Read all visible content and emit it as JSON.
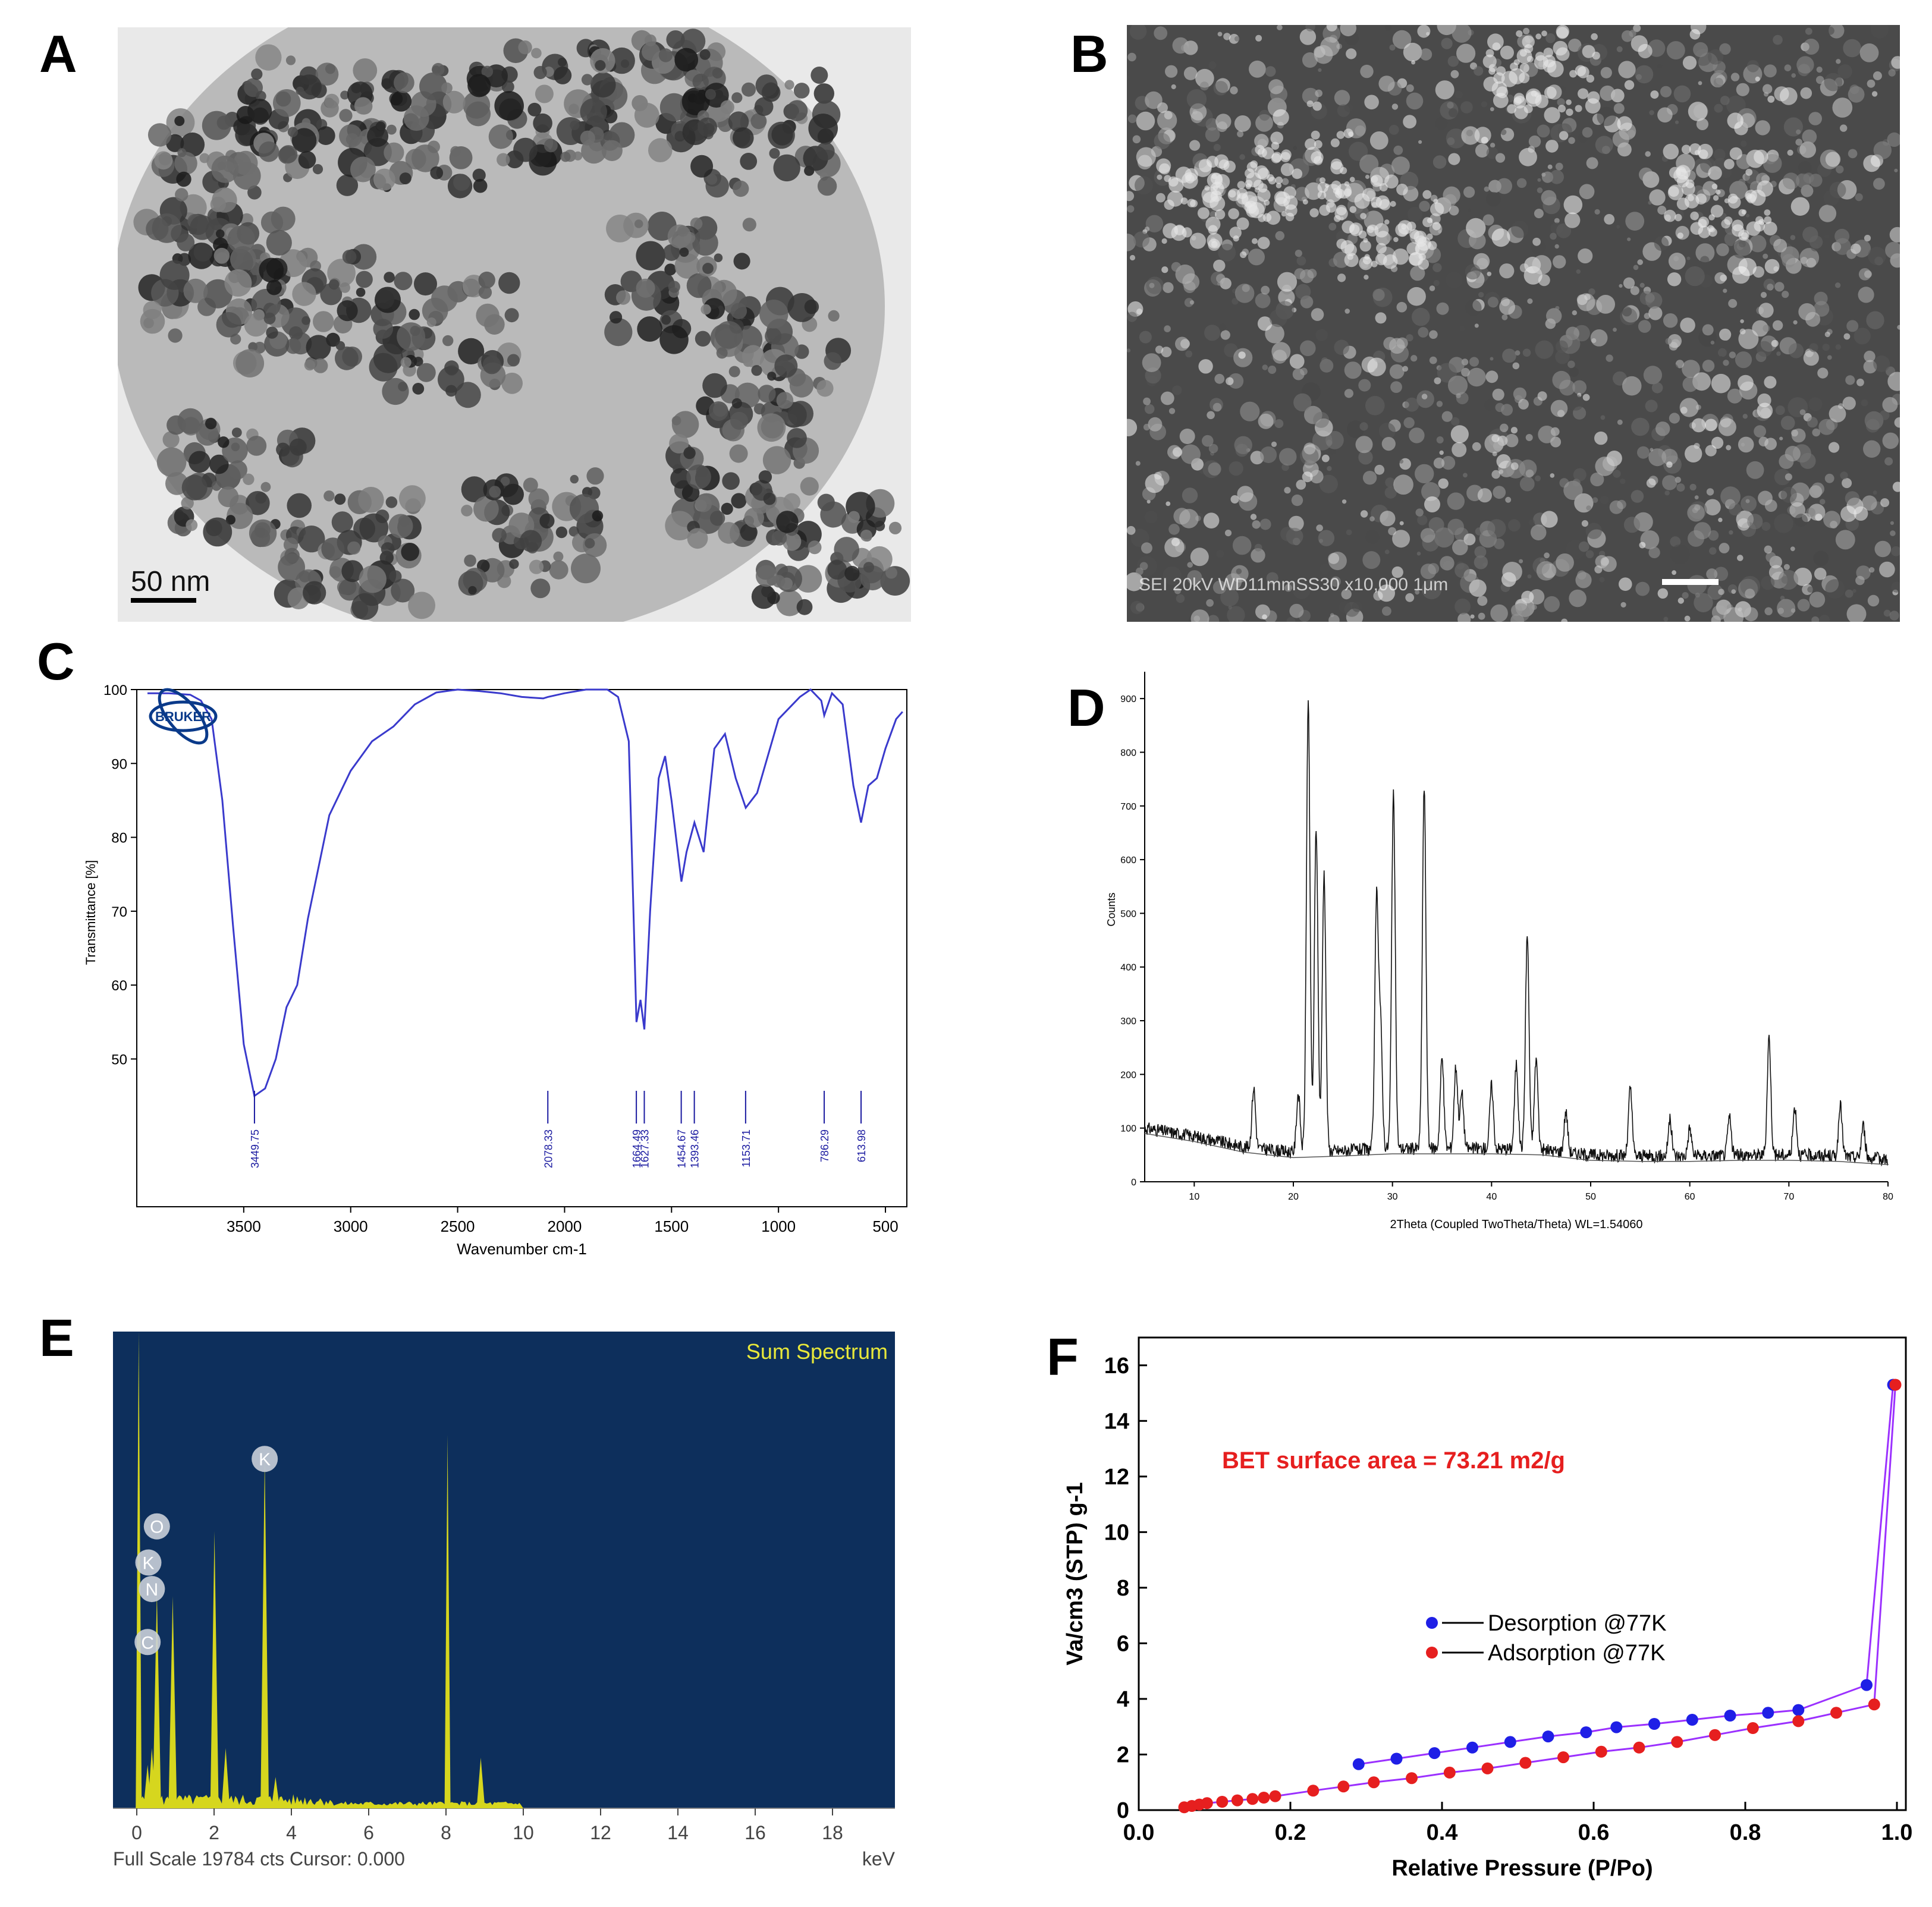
{
  "figure": {
    "panel_letters": {
      "a": "A",
      "b": "B",
      "c": "C",
      "d": "D",
      "e": "E",
      "f": "F"
    }
  },
  "panelA": {
    "type": "TEM micrograph",
    "scale_bar": "50 nm",
    "colors": {
      "background": "#cfcfcf",
      "particle": "#2a2a2a"
    }
  },
  "panelB": {
    "type": "SEM micrograph",
    "info_bar": "SEI  20kV  WD11mmSS30       x10,000   1μm",
    "colors": {
      "background": "#3a3a3a",
      "particle": "#d8d8d8"
    }
  },
  "colors": {
    "ftir_line": "#3a3acc",
    "peak_label": "#1a1aa0",
    "xrd_line": "#111111",
    "eds_bg": "#0d2f5c",
    "eds_peak": "#d6d61e",
    "eds_title": "#e8e83a",
    "desorption": "#1f1fe6",
    "adsorption": "#e61f1f",
    "isotherm_line": "#9b30ff",
    "bet_text": "#e61f1f"
  },
  "chart_data": [
    {
      "id": "C",
      "type": "line",
      "logo": "BRUKER",
      "xlabel": "Wavenumber cm-1",
      "ylabel": "Transmittance [%]",
      "xlim": [
        4000,
        400
      ],
      "ylim": [
        30,
        100
      ],
      "x_ticks": [
        "3500",
        "3000",
        "2500",
        "2000",
        "1500",
        "1000",
        "500"
      ],
      "x_tick_values": [
        3500,
        3000,
        2500,
        2000,
        1500,
        1000,
        500
      ],
      "y_ticks": [
        "100",
        "90",
        "80",
        "70",
        "60",
        "50"
      ],
      "y_tick_values": [
        100,
        90,
        80,
        70,
        60,
        50
      ],
      "peak_labels": [
        "3449.75",
        "2078.33",
        "1664.49",
        "1627.33",
        "1454.67",
        "1393.46",
        "1153.71",
        "786.29",
        "613.98"
      ],
      "peak_positions": [
        3449.75,
        2078.33,
        1664.49,
        1627.33,
        1454.67,
        1393.46,
        1153.71,
        786.29,
        613.98
      ],
      "series": [
        {
          "x": [
            3950,
            3850,
            3750,
            3700,
            3650,
            3600,
            3550,
            3500,
            3450,
            3400,
            3350,
            3300,
            3250,
            3200,
            3100,
            3000,
            2900,
            2800,
            2700,
            2600,
            2500,
            2400,
            2300,
            2200,
            2100,
            2078,
            2000,
            1900,
            1800,
            1750,
            1700,
            1680,
            1664,
            1645,
            1627,
            1600,
            1560,
            1530,
            1500,
            1454,
            1430,
            1393,
            1350,
            1300,
            1250,
            1200,
            1153,
            1100,
            1000,
            900,
            850,
            800,
            786,
            750,
            700,
            650,
            614,
            580,
            540,
            500,
            450,
            420
          ],
          "y": [
            99.5,
            99.5,
            99.3,
            98.5,
            96,
            85,
            68,
            52,
            45,
            46,
            50,
            57,
            60,
            69,
            83,
            89,
            93,
            95,
            98,
            99.6,
            100,
            99.8,
            99.5,
            99,
            98.8,
            99,
            99.5,
            100,
            100,
            99,
            93,
            72,
            55,
            58,
            54,
            70,
            88,
            91,
            85,
            74,
            78,
            82,
            78,
            92,
            94,
            88,
            84,
            86,
            96,
            99,
            100,
            98.5,
            96.5,
            99.5,
            98,
            87,
            82,
            87,
            88,
            92,
            96,
            97
          ]
        }
      ]
    },
    {
      "id": "D",
      "type": "line",
      "xlabel": "2Theta (Coupled TwoTheta/Theta) WL=1.54060",
      "ylabel": "Counts",
      "xlim": [
        5,
        80
      ],
      "ylim": [
        0,
        950
      ],
      "x_ticks": [
        "10",
        "20",
        "30",
        "40",
        "50",
        "60",
        "70",
        "80"
      ],
      "x_tick_values": [
        10,
        20,
        30,
        40,
        50,
        60,
        70,
        80
      ],
      "y_ticks": [
        "0",
        "100",
        "200",
        "300",
        "400",
        "500",
        "600",
        "700",
        "800",
        "900"
      ],
      "y_tick_values": [
        0,
        100,
        200,
        300,
        400,
        500,
        600,
        700,
        800,
        900
      ],
      "baseline": [
        [
          5,
          100
        ],
        [
          10,
          85
        ],
        [
          15,
          65
        ],
        [
          20,
          55
        ],
        [
          25,
          58
        ],
        [
          30,
          62
        ],
        [
          35,
          62
        ],
        [
          40,
          62
        ],
        [
          45,
          60
        ],
        [
          50,
          50
        ],
        [
          55,
          48
        ],
        [
          60,
          48
        ],
        [
          65,
          50
        ],
        [
          70,
          50
        ],
        [
          75,
          48
        ],
        [
          80,
          42
        ]
      ],
      "peaks": [
        [
          16,
          175
        ],
        [
          20.5,
          165
        ],
        [
          21.5,
          890
        ],
        [
          22.3,
          660
        ],
        [
          23.1,
          575
        ],
        [
          28.4,
          520
        ],
        [
          28.8,
          280
        ],
        [
          30.1,
          720
        ],
        [
          33.2,
          735
        ],
        [
          35,
          230
        ],
        [
          36.4,
          215
        ],
        [
          37,
          165
        ],
        [
          40,
          180
        ],
        [
          42.5,
          220
        ],
        [
          43.6,
          460
        ],
        [
          44.5,
          230
        ],
        [
          47.5,
          130
        ],
        [
          54,
          175
        ],
        [
          58,
          115
        ],
        [
          60,
          100
        ],
        [
          64,
          120
        ],
        [
          68,
          270
        ],
        [
          70.6,
          140
        ],
        [
          75.2,
          140
        ],
        [
          77.5,
          105
        ]
      ]
    },
    {
      "id": "E",
      "type": "bar",
      "title": "Sum Spectrum",
      "footer": "Full Scale 19784 cts Cursor: 0.000",
      "unit": "keV",
      "xlim": [
        -0.5,
        20
      ],
      "ylim": [
        0,
        19784
      ],
      "x_ticks": [
        "0",
        "2",
        "4",
        "6",
        "8",
        "10",
        "12",
        "14",
        "16",
        "18"
      ],
      "x_tick_values": [
        0,
        2,
        4,
        6,
        8,
        10,
        12,
        14,
        16,
        18
      ],
      "element_labels": [
        "K",
        "O",
        "K",
        "N",
        "C"
      ],
      "element_label_x": [
        3.31,
        0.52,
        0.3,
        0.39,
        0.28
      ],
      "element_label_counts": [
        14500,
        11700,
        10200,
        9100,
        6900
      ],
      "peaks": [
        [
          0.05,
          19784
        ],
        [
          0.28,
          1800
        ],
        [
          0.39,
          2500
        ],
        [
          0.52,
          9000
        ],
        [
          0.93,
          8800
        ],
        [
          2.01,
          11500
        ],
        [
          2.3,
          2500
        ],
        [
          3.31,
          14500
        ],
        [
          3.59,
          1300
        ],
        [
          8.04,
          15500
        ],
        [
          8.9,
          2100
        ]
      ]
    },
    {
      "id": "F",
      "type": "scatter",
      "xlabel": "Relative Pressure (P/Po)",
      "ylabel": "Va/cm3 (STP) g-1",
      "annotation": "BET surface area = 73.21 m2/g",
      "xlim": [
        0.0,
        1.0
      ],
      "ylim": [
        0,
        17
      ],
      "x_ticks": [
        "0.0",
        "0.2",
        "0.4",
        "0.6",
        "0.8",
        "1.0"
      ],
      "x_tick_values": [
        0.0,
        0.2,
        0.4,
        0.6,
        0.8,
        1.0
      ],
      "y_ticks": [
        "0",
        "2",
        "4",
        "6",
        "8",
        "10",
        "12",
        "14",
        "16"
      ],
      "y_tick_values": [
        0,
        2,
        4,
        6,
        8,
        10,
        12,
        14,
        16
      ],
      "legend": [
        "Desorption @77K",
        "Adsorption @77K"
      ],
      "series": [
        {
          "name": "Desorption @77K",
          "x": [
            0.29,
            0.34,
            0.39,
            0.44,
            0.49,
            0.54,
            0.59,
            0.63,
            0.68,
            0.73,
            0.78,
            0.83,
            0.87,
            0.96,
            0.995
          ],
          "y": [
            1.65,
            1.85,
            2.05,
            2.25,
            2.45,
            2.65,
            2.8,
            2.98,
            3.1,
            3.25,
            3.4,
            3.5,
            3.6,
            4.5,
            15.3
          ]
        },
        {
          "name": "Adsorption @77K",
          "x": [
            0.06,
            0.07,
            0.08,
            0.09,
            0.11,
            0.13,
            0.15,
            0.165,
            0.18,
            0.23,
            0.27,
            0.31,
            0.36,
            0.41,
            0.46,
            0.51,
            0.56,
            0.61,
            0.66,
            0.71,
            0.76,
            0.81,
            0.87,
            0.92,
            0.97,
            0.998
          ],
          "y": [
            0.1,
            0.15,
            0.2,
            0.25,
            0.3,
            0.35,
            0.4,
            0.45,
            0.5,
            0.7,
            0.85,
            1.0,
            1.15,
            1.35,
            1.5,
            1.7,
            1.9,
            2.1,
            2.25,
            2.45,
            2.7,
            2.95,
            3.2,
            3.5,
            3.8,
            15.3
          ]
        }
      ]
    }
  ]
}
